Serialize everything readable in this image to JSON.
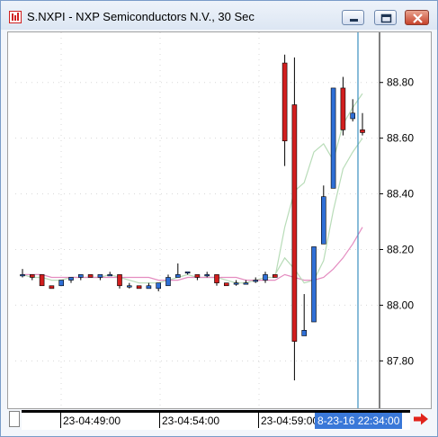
{
  "window": {
    "title": "S.NXPI - NXP Semiconductors N.V., 30 Sec",
    "icon": "chart-app-icon",
    "controls": [
      "minimize-icon",
      "maximize-icon",
      "close-icon"
    ]
  },
  "colors": {
    "up_candle": "#2f6fd6",
    "down_candle": "#d21e1e",
    "ma_fast": "#b8dcb8",
    "ma_slow": "#e48cc0",
    "cursor_line": "#3b8fc0",
    "cursor_label_bg": "#3a78d8",
    "scroll_arrow": "#e0231b"
  },
  "x_axis": {
    "labels": [
      "23-04:49:00",
      "23-04:54:00",
      "23-04:59:00"
    ],
    "cursor_time": "8-23-16 22:34:00"
  },
  "chart_data": {
    "type": "candlestick",
    "title": "S.NXPI - NXP Semiconductors N.V., 30 Sec",
    "ylim": [
      87.63,
      88.98
    ],
    "y_ticks": [
      "88.80",
      "88.60",
      "88.40",
      "88.20",
      "88.00",
      "87.80"
    ],
    "grid": true,
    "candles": [
      {
        "i": 0,
        "o": 88.11,
        "h": 88.13,
        "l": 88.1,
        "c": 88.11
      },
      {
        "i": 1,
        "o": 88.11,
        "h": 88.11,
        "l": 88.09,
        "c": 88.1
      },
      {
        "i": 2,
        "o": 88.11,
        "h": 88.11,
        "l": 88.07,
        "c": 88.07
      },
      {
        "i": 3,
        "o": 88.07,
        "h": 88.07,
        "l": 88.06,
        "c": 88.06
      },
      {
        "i": 4,
        "o": 88.07,
        "h": 88.09,
        "l": 88.07,
        "c": 88.09
      },
      {
        "i": 5,
        "o": 88.09,
        "h": 88.1,
        "l": 88.08,
        "c": 88.1
      },
      {
        "i": 6,
        "o": 88.1,
        "h": 88.11,
        "l": 88.09,
        "c": 88.11
      },
      {
        "i": 7,
        "o": 88.11,
        "h": 88.11,
        "l": 88.1,
        "c": 88.1
      },
      {
        "i": 8,
        "o": 88.1,
        "h": 88.1,
        "l": 88.09,
        "c": 88.11
      },
      {
        "i": 9,
        "o": 88.11,
        "h": 88.12,
        "l": 88.11,
        "c": 88.11
      },
      {
        "i": 10,
        "o": 88.11,
        "h": 88.11,
        "l": 88.06,
        "c": 88.07
      },
      {
        "i": 11,
        "o": 88.07,
        "h": 88.08,
        "l": 88.06,
        "c": 88.07
      },
      {
        "i": 12,
        "o": 88.07,
        "h": 88.07,
        "l": 88.06,
        "c": 88.06
      },
      {
        "i": 13,
        "o": 88.06,
        "h": 88.08,
        "l": 88.06,
        "c": 88.07
      },
      {
        "i": 14,
        "o": 88.06,
        "h": 88.08,
        "l": 88.05,
        "c": 88.08
      },
      {
        "i": 15,
        "o": 88.07,
        "h": 88.11,
        "l": 88.07,
        "c": 88.1
      },
      {
        "i": 16,
        "o": 88.1,
        "h": 88.15,
        "l": 88.1,
        "c": 88.11
      },
      {
        "i": 17,
        "o": 88.12,
        "h": 88.12,
        "l": 88.11,
        "c": 88.12
      },
      {
        "i": 18,
        "o": 88.11,
        "h": 88.11,
        "l": 88.09,
        "c": 88.1
      },
      {
        "i": 19,
        "o": 88.11,
        "h": 88.12,
        "l": 88.1,
        "c": 88.11
      },
      {
        "i": 20,
        "o": 88.11,
        "h": 88.11,
        "l": 88.07,
        "c": 88.08
      },
      {
        "i": 21,
        "o": 88.08,
        "h": 88.08,
        "l": 88.07,
        "c": 88.07
      },
      {
        "i": 22,
        "o": 88.08,
        "h": 88.09,
        "l": 88.07,
        "c": 88.08
      },
      {
        "i": 23,
        "o": 88.08,
        "h": 88.09,
        "l": 88.08,
        "c": 88.08
      },
      {
        "i": 24,
        "o": 88.09,
        "h": 88.1,
        "l": 88.08,
        "c": 88.09
      },
      {
        "i": 25,
        "o": 88.09,
        "h": 88.12,
        "l": 88.08,
        "c": 88.11
      },
      {
        "i": 26,
        "o": 88.11,
        "h": 88.11,
        "l": 88.1,
        "c": 88.1
      },
      {
        "i": 27,
        "o": 88.87,
        "h": 88.9,
        "l": 88.5,
        "c": 88.59
      },
      {
        "i": 28,
        "o": 88.72,
        "h": 88.89,
        "l": 87.73,
        "c": 87.87
      },
      {
        "i": 29,
        "o": 87.89,
        "h": 88.04,
        "l": 87.89,
        "c": 87.91
      },
      {
        "i": 30,
        "o": 87.94,
        "h": 88.21,
        "l": 87.94,
        "c": 88.21
      },
      {
        "i": 31,
        "o": 88.22,
        "h": 88.43,
        "l": 88.22,
        "c": 88.39
      },
      {
        "i": 32,
        "o": 88.42,
        "h": 88.78,
        "l": 88.42,
        "c": 88.78
      },
      {
        "i": 33,
        "o": 88.78,
        "h": 88.82,
        "l": 88.61,
        "c": 88.63
      },
      {
        "i": 34,
        "o": 88.67,
        "h": 88.74,
        "l": 88.66,
        "c": 88.69
      },
      {
        "i": 35,
        "o": 88.63,
        "h": 88.69,
        "l": 88.61,
        "c": 88.62
      }
    ],
    "series": [
      {
        "values": [
          88.11,
          88.1,
          88.1,
          88.09,
          88.09,
          88.1,
          88.1,
          88.1,
          88.1,
          88.11,
          88.1,
          88.09,
          88.08,
          88.08,
          88.08,
          88.09,
          88.1,
          88.11,
          88.1,
          88.1,
          88.1,
          88.09,
          88.08,
          88.08,
          88.09,
          88.1,
          88.1,
          88.28,
          88.41,
          88.44,
          88.55,
          88.58,
          88.52,
          88.65,
          88.71,
          88.76
        ]
      },
      {
        "values": [
          88.11,
          88.11,
          88.11,
          88.1,
          88.1,
          88.1,
          88.1,
          88.1,
          88.1,
          88.1,
          88.1,
          88.1,
          88.1,
          88.1,
          88.09,
          88.09,
          88.09,
          88.1,
          88.1,
          88.1,
          88.1,
          88.1,
          88.1,
          88.09,
          88.09,
          88.09,
          88.09,
          88.11,
          88.1,
          88.09,
          88.09,
          88.1,
          88.13,
          88.17,
          88.22,
          88.28
        ]
      },
      {
        "values": [
          null,
          null,
          null,
          null,
          null,
          null,
          null,
          null,
          null,
          null,
          null,
          null,
          null,
          null,
          null,
          null,
          null,
          null,
          null,
          null,
          null,
          null,
          null,
          null,
          null,
          null,
          88.11,
          88.17,
          88.13,
          88.08,
          88.09,
          88.16,
          88.34,
          88.49,
          88.55,
          88.6
        ]
      }
    ]
  }
}
